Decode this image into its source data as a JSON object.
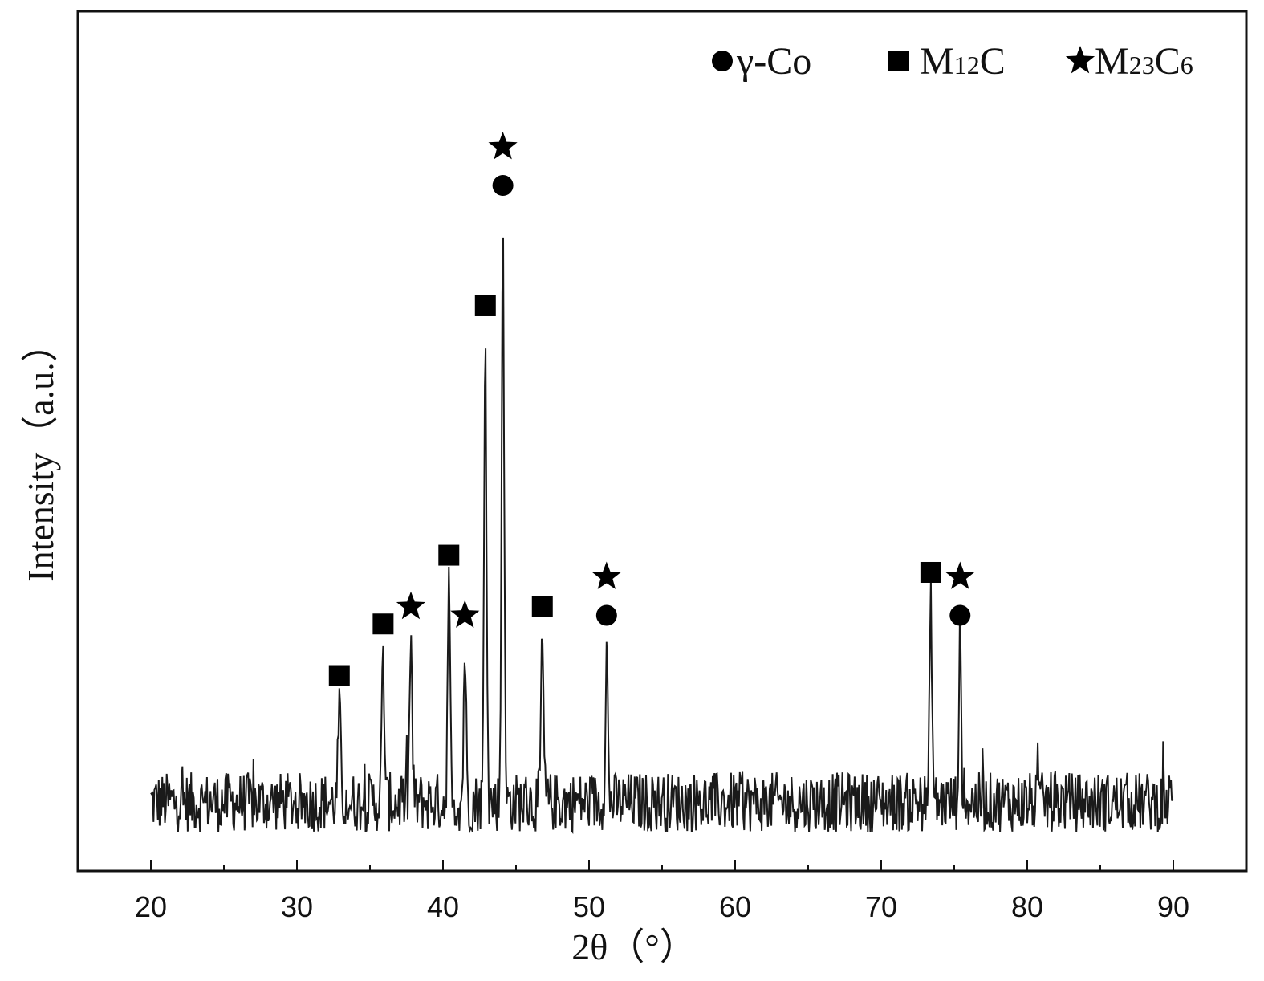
{
  "chart_data": {
    "type": "line",
    "xlabel": "2θ（°）",
    "ylabel": "Intensity（a.u.）",
    "xlim": [
      15,
      95
    ],
    "ylim": [
      0,
      100
    ],
    "xticks": [
      20,
      30,
      40,
      50,
      60,
      70,
      80,
      90
    ],
    "grid": false,
    "legend": {
      "placement": "top-right",
      "entries": [
        {
          "marker": "circle",
          "label": "γ-Co"
        },
        {
          "marker": "square",
          "label": "M",
          "sub": "12",
          "suffix": "C"
        },
        {
          "marker": "star",
          "label": "M",
          "sub": "23",
          "suffix": "C",
          "sub2": "6"
        }
      ]
    },
    "baseline": 8,
    "noise": 3.5,
    "peaks": [
      {
        "x": 32.9,
        "y": 19
      },
      {
        "x": 35.9,
        "y": 25
      },
      {
        "x": 37.8,
        "y": 27
      },
      {
        "x": 40.4,
        "y": 33
      },
      {
        "x": 41.5,
        "y": 26
      },
      {
        "x": 42.9,
        "y": 62
      },
      {
        "x": 44.1,
        "y": 76
      },
      {
        "x": 46.8,
        "y": 27
      },
      {
        "x": 51.2,
        "y": 26
      },
      {
        "x": 73.4,
        "y": 31
      },
      {
        "x": 75.4,
        "y": 26
      }
    ],
    "annotations": [
      {
        "x": 32.9,
        "markers": [
          "square"
        ]
      },
      {
        "x": 35.9,
        "markers": [
          "square"
        ]
      },
      {
        "x": 37.8,
        "markers": [
          "star"
        ]
      },
      {
        "x": 40.4,
        "markers": [
          "square"
        ]
      },
      {
        "x": 41.5,
        "markers": [
          "star"
        ]
      },
      {
        "x": 42.9,
        "markers": [
          "square"
        ]
      },
      {
        "x": 44.1,
        "markers": [
          "circle",
          "star"
        ]
      },
      {
        "x": 46.8,
        "markers": [
          "square"
        ]
      },
      {
        "x": 51.2,
        "markers": [
          "circle",
          "star"
        ]
      },
      {
        "x": 73.4,
        "markers": [
          "square"
        ]
      },
      {
        "x": 75.4,
        "markers": [
          "circle",
          "star"
        ]
      }
    ]
  }
}
